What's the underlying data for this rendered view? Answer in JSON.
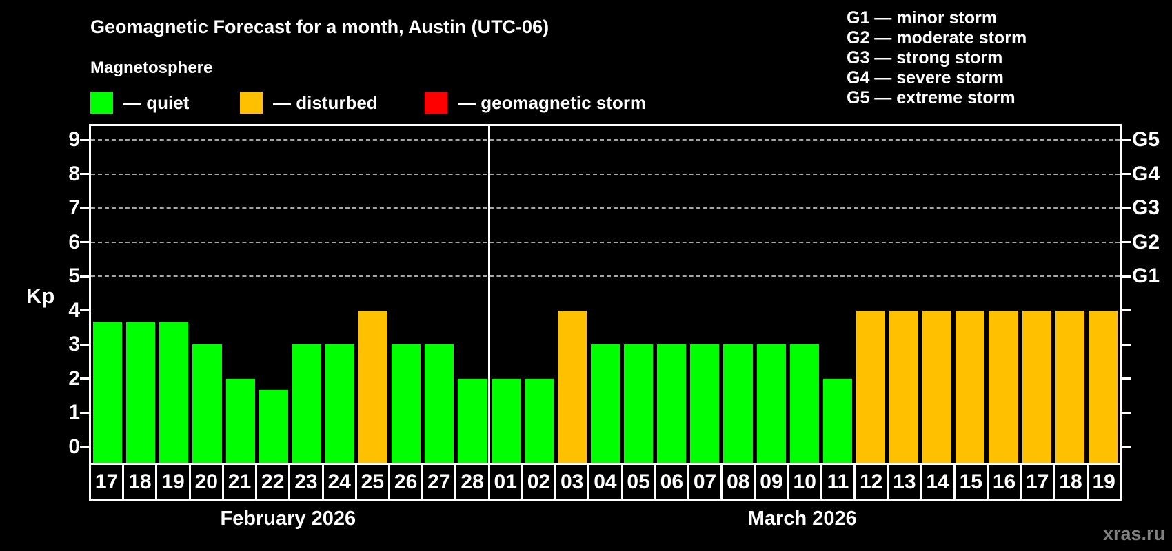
{
  "title": "Geomagnetic Forecast for a month, Austin (UTC-06)",
  "subtitle": "Magnetosphere",
  "legend": [
    {
      "label": "— quiet",
      "status": "quiet"
    },
    {
      "label": "— disturbed",
      "status": "disturbed"
    },
    {
      "label": "— geomagnetic storm",
      "status": "storm"
    }
  ],
  "storm_scale": [
    "G1 — minor storm",
    "G2 — moderate storm",
    "G3 — strong storm",
    "G4 — severe storm",
    "G5 — extreme storm"
  ],
  "watermark": "xras.ru",
  "colors": {
    "quiet": "#00FF00",
    "disturbed": "#FFC000",
    "storm": "#FF0000",
    "grid": "#A6A6A6",
    "axis": "#FFFFFF",
    "watermark": "#808080"
  },
  "chart_data": {
    "type": "bar",
    "title": "Geomagnetic Forecast for a month, Austin (UTC-06)",
    "ylabel": "Kp",
    "ylim": [
      0,
      9.4
    ],
    "yticks": [
      0,
      1,
      2,
      3,
      4,
      5,
      6,
      7,
      8,
      9
    ],
    "gridlines_at": [
      5,
      6,
      7,
      8,
      9
    ],
    "right_axis_labels": [
      {
        "kp": 9,
        "label": "G5"
      },
      {
        "kp": 8,
        "label": "G4"
      },
      {
        "kp": 7,
        "label": "G3"
      },
      {
        "kp": 6,
        "label": "G2"
      },
      {
        "kp": 5,
        "label": "G1"
      }
    ],
    "months": [
      {
        "label": "February 2026",
        "days": 12
      },
      {
        "label": "March 2026",
        "days": 19
      }
    ],
    "bars": [
      {
        "day": "17",
        "month": "February 2026",
        "value": 3.67,
        "status": "quiet"
      },
      {
        "day": "18",
        "month": "February 2026",
        "value": 3.67,
        "status": "quiet"
      },
      {
        "day": "19",
        "month": "February 2026",
        "value": 3.67,
        "status": "quiet"
      },
      {
        "day": "20",
        "month": "February 2026",
        "value": 3,
        "status": "quiet"
      },
      {
        "day": "21",
        "month": "February 2026",
        "value": 2,
        "status": "quiet"
      },
      {
        "day": "22",
        "month": "February 2026",
        "value": 1.67,
        "status": "quiet"
      },
      {
        "day": "23",
        "month": "February 2026",
        "value": 3,
        "status": "quiet"
      },
      {
        "day": "24",
        "month": "February 2026",
        "value": 3,
        "status": "quiet"
      },
      {
        "day": "25",
        "month": "February 2026",
        "value": 4,
        "status": "disturbed"
      },
      {
        "day": "26",
        "month": "February 2026",
        "value": 3,
        "status": "quiet"
      },
      {
        "day": "27",
        "month": "February 2026",
        "value": 3,
        "status": "quiet"
      },
      {
        "day": "28",
        "month": "February 2026",
        "value": 2,
        "status": "quiet"
      },
      {
        "day": "01",
        "month": "March 2026",
        "value": 2,
        "status": "quiet"
      },
      {
        "day": "02",
        "month": "March 2026",
        "value": 2,
        "status": "quiet"
      },
      {
        "day": "03",
        "month": "March 2026",
        "value": 4,
        "status": "disturbed"
      },
      {
        "day": "04",
        "month": "March 2026",
        "value": 3,
        "status": "quiet"
      },
      {
        "day": "05",
        "month": "March 2026",
        "value": 3,
        "status": "quiet"
      },
      {
        "day": "06",
        "month": "March 2026",
        "value": 3,
        "status": "quiet"
      },
      {
        "day": "07",
        "month": "March 2026",
        "value": 3,
        "status": "quiet"
      },
      {
        "day": "08",
        "month": "March 2026",
        "value": 3,
        "status": "quiet"
      },
      {
        "day": "09",
        "month": "March 2026",
        "value": 3,
        "status": "quiet"
      },
      {
        "day": "10",
        "month": "March 2026",
        "value": 3,
        "status": "quiet"
      },
      {
        "day": "11",
        "month": "March 2026",
        "value": 2,
        "status": "quiet"
      },
      {
        "day": "12",
        "month": "March 2026",
        "value": 4,
        "status": "disturbed"
      },
      {
        "day": "13",
        "month": "March 2026",
        "value": 4,
        "status": "disturbed"
      },
      {
        "day": "14",
        "month": "March 2026",
        "value": 4,
        "status": "disturbed"
      },
      {
        "day": "15",
        "month": "March 2026",
        "value": 4,
        "status": "disturbed"
      },
      {
        "day": "16",
        "month": "March 2026",
        "value": 4,
        "status": "disturbed"
      },
      {
        "day": "17",
        "month": "March 2026",
        "value": 4,
        "status": "disturbed"
      },
      {
        "day": "18",
        "month": "March 2026",
        "value": 4,
        "status": "disturbed"
      },
      {
        "day": "19",
        "month": "March 2026",
        "value": 4,
        "status": "disturbed"
      }
    ]
  }
}
